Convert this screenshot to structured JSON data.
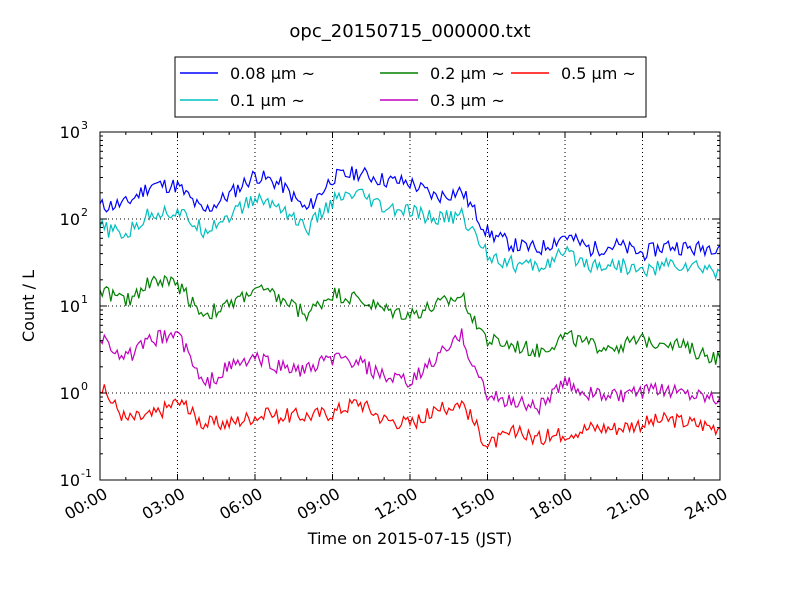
{
  "chart_data": {
    "type": "line",
    "title": "opc_20150715_000000.txt",
    "xlabel": "Time on 2015-07-15 (JST)",
    "ylabel": "Count / L",
    "yscale": "log",
    "ylim": [
      0.1,
      1000
    ],
    "xlim": [
      "00:00",
      "24:00"
    ],
    "x_ticks": [
      "00:00",
      "03:00",
      "06:00",
      "09:00",
      "12:00",
      "15:00",
      "18:00",
      "21:00",
      "24:00"
    ],
    "y_ticks": [
      {
        "base": "10",
        "exp": "-1",
        "value": 0.1
      },
      {
        "base": "10",
        "exp": "0",
        "value": 1
      },
      {
        "base": "10",
        "exp": "1",
        "value": 10
      },
      {
        "base": "10",
        "exp": "2",
        "value": 100
      },
      {
        "base": "10",
        "exp": "3",
        "value": 1000
      }
    ],
    "grid": true,
    "legend_position": "top-center",
    "x": [
      "00:00",
      "01:00",
      "02:00",
      "03:00",
      "04:00",
      "05:00",
      "06:00",
      "07:00",
      "08:00",
      "09:00",
      "10:00",
      "11:00",
      "12:00",
      "13:00",
      "14:00",
      "15:00",
      "16:00",
      "17:00",
      "18:00",
      "19:00",
      "20:00",
      "21:00",
      "22:00",
      "23:00",
      "24:00"
    ],
    "series": [
      {
        "name": "0.08 μm ~",
        "color": "#0000ff",
        "values": [
          140,
          150,
          250,
          240,
          120,
          190,
          320,
          250,
          125,
          300,
          340,
          280,
          260,
          180,
          210,
          70,
          50,
          45,
          65,
          45,
          50,
          40,
          50,
          45,
          50
        ]
      },
      {
        "name": "0.1 μm ~",
        "color": "#00bfbf",
        "values": [
          80,
          65,
          120,
          120,
          75,
          110,
          170,
          140,
          75,
          160,
          190,
          130,
          120,
          100,
          110,
          40,
          30,
          28,
          40,
          30,
          30,
          25,
          30,
          28,
          25
        ]
      },
      {
        "name": "0.2 μm ~",
        "color": "#008000",
        "values": [
          16,
          11,
          20,
          18,
          8,
          10,
          16,
          12,
          8,
          14,
          12,
          9,
          8,
          10,
          13,
          4,
          3.5,
          3,
          4.5,
          3.5,
          3.5,
          4,
          4,
          3,
          2.5
        ]
      },
      {
        "name": "0.3 μm ~",
        "color": "#bf00bf",
        "values": [
          4.5,
          2.5,
          4,
          5,
          1.2,
          2,
          2.5,
          2,
          1.8,
          2.5,
          2.2,
          1.5,
          1.3,
          2.5,
          4.5,
          0.9,
          0.8,
          0.7,
          1.3,
          1,
          0.9,
          1,
          1.1,
          1,
          0.9
        ]
      },
      {
        "name": "0.5 μm ~",
        "color": "#ff0000",
        "values": [
          1.2,
          0.5,
          0.55,
          0.8,
          0.45,
          0.45,
          0.55,
          0.55,
          0.55,
          0.6,
          0.8,
          0.5,
          0.45,
          0.6,
          0.8,
          0.25,
          0.35,
          0.3,
          0.35,
          0.4,
          0.4,
          0.45,
          0.5,
          0.45,
          0.4
        ]
      }
    ]
  }
}
